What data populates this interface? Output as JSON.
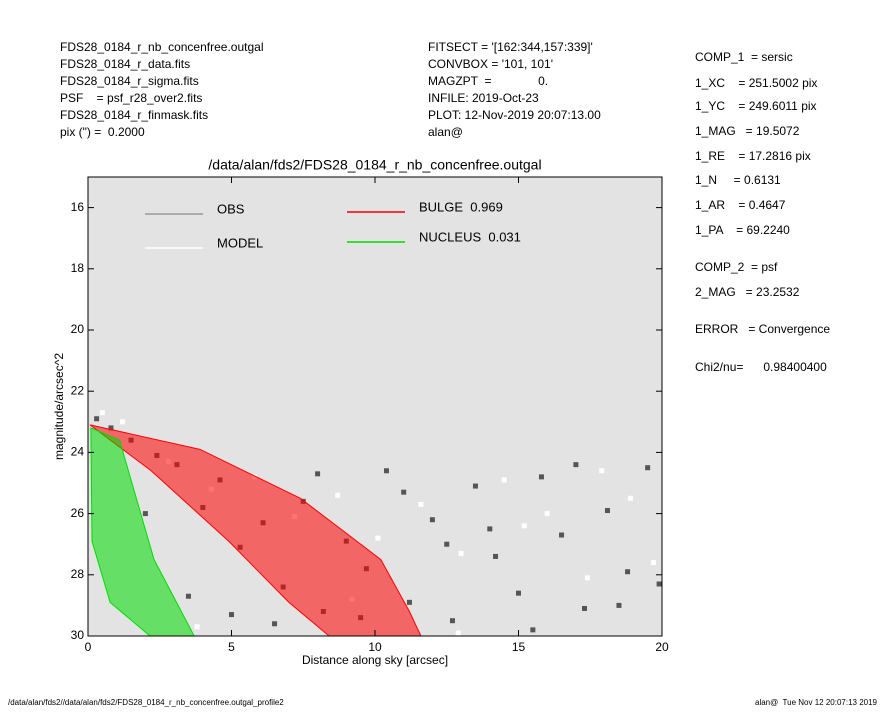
{
  "header_left": [
    "FDS28_0184_r_nb_concenfree.outgal",
    "FDS28_0184_r_data.fits",
    "FDS28_0184_r_sigma.fits",
    "PSF    = psf_r28_over2.fits",
    "FDS28_0184_r_finmask.fits",
    "pix (\") =  0.2000"
  ],
  "header_middle": [
    "FITSECT = '[162:344,157:339]'",
    "CONVBOX = '101, 101'",
    "MAGZPT  =              0.",
    "INFILE: 2019-Oct-23",
    "PLOT: 12-Nov-2019 20:07:13.00",
    "alan@"
  ],
  "parameters": [
    "COMP_1  = sersic",
    "1_XC    = 251.5002 pix",
    "1_YC    = 249.6011 pix",
    "1_MAG   = 19.5072",
    "1_RE    = 17.2816 pix",
    "1_N     = 0.6131",
    "1_AR    = 0.4647",
    "1_PA    = 69.2240",
    "COMP_2  = psf",
    "2_MAG   = 23.2532",
    "ERROR   = Convergence",
    "Chi2/nu=      0.98400400"
  ],
  "footer_left": "/data/alan/fds2//data/alan/fds2/FDS28_0184_r_nb_concenfree.outgal_profile2",
  "footer_right": "alan@  Tue Nov 12 20:07:13 2019",
  "chart_data": {
    "type": "scatter",
    "title": "/data/alan/fds2/FDS28_0184_r_nb_concenfree.outgal",
    "xlabel": "Distance along sky [arcsec]",
    "ylabel": "magnitude/arcsec^2",
    "xlim": [
      0,
      20
    ],
    "ylim": [
      30,
      15
    ],
    "xticks": [
      0,
      5,
      10,
      15,
      20
    ],
    "yticks": [
      16,
      18,
      20,
      22,
      24,
      26,
      28,
      30
    ],
    "background": "#e3e3e3",
    "series": [
      {
        "name": "OBS",
        "color": "#555555",
        "legend_color": "#999999",
        "marker": "square",
        "x": [
          0.3,
          0.8,
          1.5,
          2.4,
          3.1,
          4.0,
          4.6,
          5.3,
          6.1,
          6.8,
          7.5,
          8.2,
          9.0,
          9.7,
          10.4,
          11.2,
          12.0,
          12.7,
          13.5,
          14.2,
          15.0,
          15.8,
          16.5,
          17.3,
          18.1,
          18.8,
          19.5,
          19.9,
          3.5,
          6.5,
          9.5,
          12.5,
          15.5,
          18.5,
          2.0,
          5.0,
          8.0,
          11.0,
          14.0,
          17.0
        ],
        "values": [
          22.9,
          23.2,
          23.6,
          24.1,
          24.4,
          25.8,
          24.9,
          27.1,
          26.3,
          28.4,
          25.6,
          29.2,
          26.9,
          27.8,
          24.6,
          28.9,
          26.2,
          29.5,
          25.1,
          27.4,
          28.6,
          24.8,
          26.7,
          29.1,
          25.9,
          27.9,
          24.5,
          28.3,
          28.7,
          29.6,
          29.4,
          27.0,
          29.8,
          29.0,
          26.0,
          29.3,
          24.7,
          25.3,
          26.5,
          24.4
        ]
      },
      {
        "name": "MODEL",
        "color": "#ffffff",
        "legend_color": "#ffffff",
        "marker": "square",
        "x": [
          0.5,
          1.2,
          2.8,
          4.3,
          5.8,
          7.2,
          8.7,
          10.1,
          11.6,
          13.0,
          14.5,
          16.0,
          17.4,
          18.9,
          19.7,
          3.8,
          9.2,
          12.9,
          15.2,
          17.9
        ],
        "values": [
          22.7,
          23.0,
          24.3,
          25.2,
          24.8,
          26.1,
          25.4,
          26.8,
          25.7,
          27.3,
          24.9,
          26.0,
          28.1,
          25.5,
          27.6,
          29.7,
          28.8,
          29.9,
          26.4,
          24.6
        ]
      },
      {
        "name": "BULGE  0.969",
        "color": "#ff0000",
        "legend_color": "#ff0000",
        "marker": "area",
        "x": [
          0.07,
          3.9,
          7.4,
          10.2,
          11.2,
          11.6,
          8.4,
          7.0,
          4.9,
          2.2
        ],
        "values": [
          23.1,
          23.9,
          25.5,
          27.5,
          29.2,
          30,
          30,
          28.9,
          26.9,
          24.6
        ]
      },
      {
        "name": "NUCLEUS  0.031",
        "color": "#00dd00",
        "legend_color": "#00dd00",
        "marker": "area",
        "x": [
          0.1,
          1.1,
          2.3,
          3.7,
          2.16,
          0.77,
          0.14
        ],
        "values": [
          23.2,
          23.6,
          27.5,
          30,
          30,
          28.9,
          26.9
        ]
      }
    ]
  }
}
